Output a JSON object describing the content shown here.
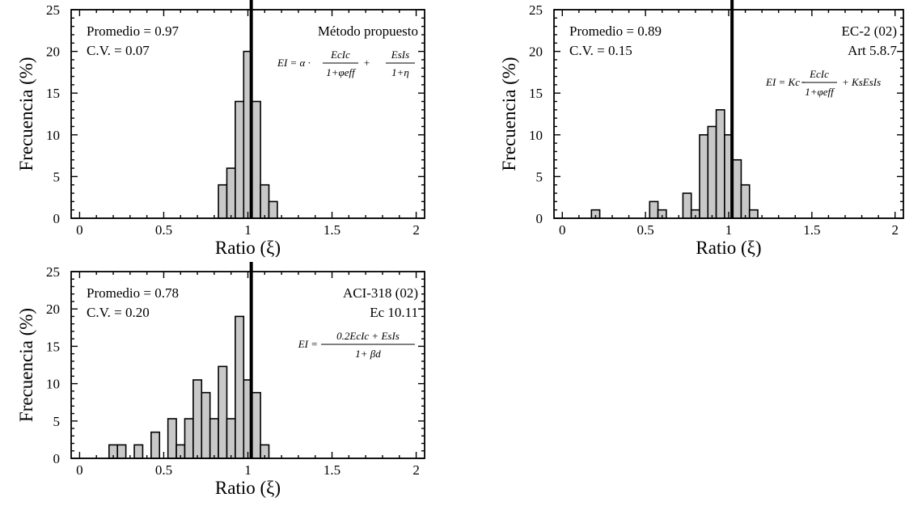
{
  "chart_data": [
    {
      "type": "bar",
      "xlabel": "Ratio (ξ)",
      "ylabel": "Frecuencia (%)",
      "xlim": [
        -0.05,
        2.05
      ],
      "ylim": [
        0,
        25
      ],
      "xticks": [
        "0",
        "0.5",
        "1",
        "1.5",
        "2"
      ],
      "yticks": [
        "0",
        "5",
        "10",
        "15",
        "20",
        "25"
      ],
      "bin_width": 0.05,
      "reference_line_x": 1.02,
      "stats": [
        "Promedio = 0.97",
        "C.V. = 0.07"
      ],
      "method": [
        "Método propuesto"
      ],
      "formula": {
        "lhs": "EI = α ·",
        "frac1_num": "EcIc",
        "frac1_den": "1+φeff",
        "plus": "+",
        "frac2_num": "EsIs",
        "frac2_den": "1+η"
      },
      "bars": [
        {
          "x": 0.85,
          "y": 4
        },
        {
          "x": 0.9,
          "y": 6
        },
        {
          "x": 0.95,
          "y": 14
        },
        {
          "x": 1.0,
          "y": 20
        },
        {
          "x": 1.05,
          "y": 14
        },
        {
          "x": 1.1,
          "y": 4
        },
        {
          "x": 1.15,
          "y": 2
        }
      ]
    },
    {
      "type": "bar",
      "xlabel": "Ratio (ξ)",
      "ylabel": "Frecuencia (%)",
      "xlim": [
        -0.05,
        2.05
      ],
      "ylim": [
        0,
        25
      ],
      "xticks": [
        "0",
        "0.5",
        "1",
        "1.5",
        "2"
      ],
      "yticks": [
        "0",
        "5",
        "10",
        "15",
        "20",
        "25"
      ],
      "bin_width": 0.05,
      "reference_line_x": 1.02,
      "stats": [
        "Promedio = 0.89",
        "C.V. = 0.15"
      ],
      "method": [
        "EC-2 (02)",
        "Art 5.8.7"
      ],
      "formula": {
        "lhs": "EI = Kc ·",
        "frac1_num": "EcIc",
        "frac1_den": "1+φeff",
        "plus": "+ KsEsIs"
      },
      "bars": [
        {
          "x": 0.2,
          "y": 1
        },
        {
          "x": 0.55,
          "y": 2
        },
        {
          "x": 0.6,
          "y": 1
        },
        {
          "x": 0.75,
          "y": 3
        },
        {
          "x": 0.8,
          "y": 1
        },
        {
          "x": 0.85,
          "y": 10
        },
        {
          "x": 0.9,
          "y": 11
        },
        {
          "x": 0.95,
          "y": 13
        },
        {
          "x": 1.0,
          "y": 10
        },
        {
          "x": 1.05,
          "y": 7
        },
        {
          "x": 1.1,
          "y": 4
        },
        {
          "x": 1.15,
          "y": 1
        }
      ]
    },
    {
      "type": "bar",
      "xlabel": "Ratio (ξ)",
      "ylabel": "Frecuencia (%)",
      "xlim": [
        -0.05,
        2.05
      ],
      "ylim": [
        0,
        25
      ],
      "xticks": [
        "0",
        "0.5",
        "1",
        "1.5",
        "2"
      ],
      "yticks": [
        "0",
        "5",
        "10",
        "15",
        "20",
        "25"
      ],
      "bin_width": 0.05,
      "reference_line_x": 1.02,
      "stats": [
        "Promedio = 0.78",
        "C.V. = 0.20"
      ],
      "method": [
        "ACI-318 (02)",
        "Ec 10.11"
      ],
      "formula": {
        "lhs": "EI =",
        "frac1_num": "0.2EcIc + EsIs",
        "frac1_den": "1+ βd"
      },
      "bars": [
        {
          "x": 0.2,
          "y": 1.8
        },
        {
          "x": 0.25,
          "y": 1.8
        },
        {
          "x": 0.35,
          "y": 1.8
        },
        {
          "x": 0.45,
          "y": 3.5
        },
        {
          "x": 0.55,
          "y": 5.3
        },
        {
          "x": 0.6,
          "y": 1.8
        },
        {
          "x": 0.65,
          "y": 5.3
        },
        {
          "x": 0.7,
          "y": 10.5
        },
        {
          "x": 0.75,
          "y": 8.8
        },
        {
          "x": 0.8,
          "y": 5.3
        },
        {
          "x": 0.85,
          "y": 12.3
        },
        {
          "x": 0.9,
          "y": 5.3
        },
        {
          "x": 0.95,
          "y": 19
        },
        {
          "x": 1.0,
          "y": 10.5
        },
        {
          "x": 1.05,
          "y": 8.8
        },
        {
          "x": 1.1,
          "y": 1.8
        }
      ]
    }
  ]
}
